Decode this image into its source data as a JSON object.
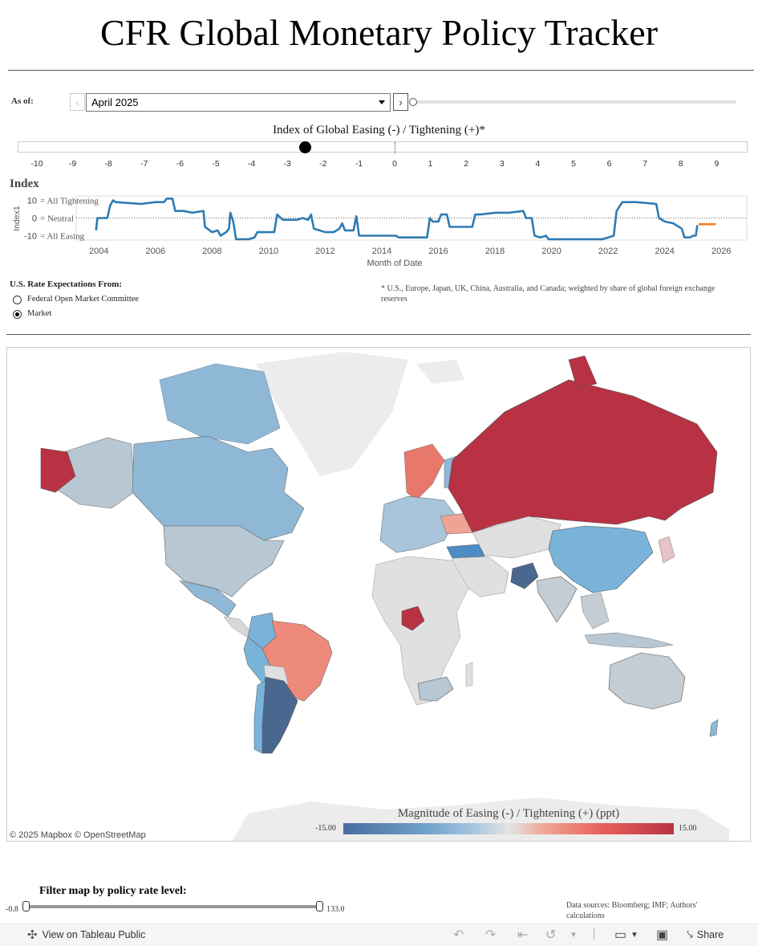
{
  "title": "CFR Global Monetary Policy Tracker",
  "as_of": {
    "label": "As of:",
    "selected": "April 2025",
    "slider_fraction": 1.0
  },
  "index_bar": {
    "title": "Index of Global Easing (-) / Tightening (+)*",
    "ticks": [
      "-10",
      "-9",
      "-8",
      "-7",
      "-6",
      "-5",
      "-4",
      "-3",
      "-2",
      "-1",
      "0",
      "1",
      "2",
      "3",
      "4",
      "5",
      "6",
      "7",
      "8",
      "9"
    ],
    "current_value": -2.5
  },
  "index_heading": "Index",
  "chart_data": {
    "type": "line",
    "ylabel": "Index1",
    "xlabel": "Month of Date",
    "x_ticks": [
      "2004",
      "2006",
      "2008",
      "2010",
      "2012",
      "2014",
      "2016",
      "2018",
      "2020",
      "2022",
      "2024",
      "2026"
    ],
    "y_ticks": [
      "10",
      "0",
      "-10"
    ],
    "y_annotations": [
      "= All Tightening",
      "= Neutral",
      "= All Easing"
    ],
    "xlim": [
      2003.2,
      2026.9
    ],
    "ylim": [
      -12.5,
      12.5
    ],
    "series": [
      {
        "color": "#2e7bb3",
        "points": [
          [
            2003.9,
            -7
          ],
          [
            2003.95,
            0
          ],
          [
            2004.3,
            0
          ],
          [
            2004.4,
            7
          ],
          [
            2004.5,
            10
          ],
          [
            2004.6,
            9
          ],
          [
            2005.5,
            8
          ],
          [
            2006.0,
            9
          ],
          [
            2006.3,
            9
          ],
          [
            2006.4,
            11
          ],
          [
            2006.6,
            11
          ],
          [
            2006.7,
            4
          ],
          [
            2007.0,
            4
          ],
          [
            2007.3,
            3
          ],
          [
            2007.7,
            4
          ],
          [
            2007.75,
            -5
          ],
          [
            2008.0,
            -8
          ],
          [
            2008.2,
            -7
          ],
          [
            2008.3,
            -10
          ],
          [
            2008.5,
            -8
          ],
          [
            2008.6,
            -6
          ],
          [
            2008.65,
            3
          ],
          [
            2008.75,
            -2
          ],
          [
            2008.85,
            -12
          ],
          [
            2009.3,
            -12
          ],
          [
            2009.5,
            -11
          ],
          [
            2009.6,
            -8
          ],
          [
            2010.2,
            -8
          ],
          [
            2010.25,
            -3
          ],
          [
            2010.3,
            2
          ],
          [
            2010.5,
            -1
          ],
          [
            2011.0,
            -1
          ],
          [
            2011.2,
            0
          ],
          [
            2011.4,
            -1
          ],
          [
            2011.5,
            2
          ],
          [
            2011.6,
            -6
          ],
          [
            2011.8,
            -7
          ],
          [
            2012.0,
            -8
          ],
          [
            2012.3,
            -8
          ],
          [
            2012.5,
            -6
          ],
          [
            2012.6,
            -3
          ],
          [
            2012.7,
            -7
          ],
          [
            2013.0,
            -7
          ],
          [
            2013.1,
            1
          ],
          [
            2013.2,
            -10
          ],
          [
            2014.0,
            -10
          ],
          [
            2014.5,
            -10
          ],
          [
            2014.6,
            -11
          ],
          [
            2015.6,
            -11
          ],
          [
            2015.7,
            0
          ],
          [
            2015.8,
            -2
          ],
          [
            2016.0,
            -2
          ],
          [
            2016.1,
            2
          ],
          [
            2016.3,
            2
          ],
          [
            2016.4,
            -5
          ],
          [
            2017.2,
            -5
          ],
          [
            2017.3,
            2
          ],
          [
            2017.5,
            2
          ],
          [
            2018.0,
            3
          ],
          [
            2018.5,
            3
          ],
          [
            2019.0,
            4
          ],
          [
            2019.1,
            0
          ],
          [
            2019.3,
            0
          ],
          [
            2019.4,
            -10
          ],
          [
            2019.6,
            -11
          ],
          [
            2019.8,
            -10
          ],
          [
            2019.9,
            -12
          ],
          [
            2021.8,
            -12
          ],
          [
            2022.0,
            -11
          ],
          [
            2022.2,
            -10
          ],
          [
            2022.3,
            4
          ],
          [
            2022.5,
            9
          ],
          [
            2023.0,
            9
          ],
          [
            2023.7,
            8
          ],
          [
            2023.8,
            0
          ],
          [
            2024.0,
            -2
          ],
          [
            2024.3,
            -3
          ],
          [
            2024.6,
            -6
          ],
          [
            2024.7,
            -11
          ],
          [
            2024.9,
            -11
          ],
          [
            2025.0,
            -10
          ],
          [
            2025.1,
            -10
          ],
          [
            2025.15,
            -4
          ]
        ]
      },
      {
        "color": "#f47c20",
        "points": [
          [
            2025.2,
            -3.5
          ],
          [
            2025.5,
            -3.5
          ],
          [
            2025.8,
            -3.5
          ]
        ]
      }
    ]
  },
  "rate_expectations": {
    "label": "U.S. Rate Expectations From:",
    "options": [
      "Federal Open Market Committee",
      "Market"
    ],
    "selected": "Market"
  },
  "footnote": "* U.S., Europe, Japan, UK, China, Australia, and Canada;  weighted by share of global foreign exchange reserves",
  "map": {
    "copyright": "© 2025 Mapbox  © OpenStreetMap",
    "legend_title": "Magnitude of Easing (-) / Tightening (+) (ppt)",
    "legend_min": "-15.00",
    "legend_max": "15.00",
    "colors": {
      "strong_tighten": "#b83244",
      "tighten": "#e8867a",
      "neutral": "#e4e4e4",
      "mild_ease": "#aac2d4",
      "ease": "#7ab3d9",
      "strong_ease": "#4a6790",
      "no_data": "#e8e8e8"
    }
  },
  "filter": {
    "label": "Filter map by policy rate level:",
    "min": "-0.8",
    "max": "133.0"
  },
  "sources": "Data sources: Bloomberg; IMF; Authors' calculations",
  "toolbar": {
    "view_public": "View on Tableau Public",
    "share": "Share"
  }
}
